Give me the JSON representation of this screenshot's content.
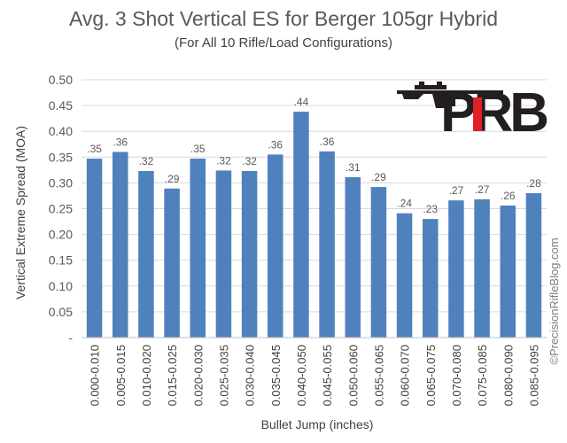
{
  "chart_data": {
    "type": "bar",
    "title": "Avg. 3 Shot Vertical ES for Berger 105gr Hybrid",
    "subtitle": "(For All 10 Rifle/Load Configurations)",
    "xlabel": "Bullet Jump (inches)",
    "ylabel": "Vertical Extreme Spread (MOA)",
    "ylim": [
      0,
      0.5
    ],
    "yticks": [
      "-",
      "0.05",
      "0.10",
      "0.15",
      "0.20",
      "0.25",
      "0.30",
      "0.35",
      "0.40",
      "0.45",
      "0.50"
    ],
    "grid": true,
    "bar_color": "#4f81bd",
    "categories": [
      "0.000-0.010",
      "0.005-0.015",
      "0.010-0.020",
      "0.015-0.025",
      "0.020-0.030",
      "0.025-0.035",
      "0.030-0.040",
      "0.035-0.045",
      "0.040-0.050",
      "0.045-0.055",
      "0.050-0.060",
      "0.055-0.065",
      "0.060-0.070",
      "0.065-0.075",
      "0.070-0.080",
      "0.075-0.085",
      "0.080-0.090",
      "0.085-0.095"
    ],
    "values": [
      0.347,
      0.36,
      0.323,
      0.289,
      0.347,
      0.324,
      0.323,
      0.355,
      0.438,
      0.361,
      0.311,
      0.292,
      0.241,
      0.23,
      0.266,
      0.268,
      0.256,
      0.28
    ],
    "data_labels": [
      ".35",
      ".36",
      ".32",
      ".29",
      ".35",
      ".32",
      ".32",
      ".36",
      ".44",
      ".36",
      ".31",
      ".29",
      ".24",
      ".23",
      ".27",
      ".27",
      ".26",
      ".28"
    ]
  },
  "logo": {
    "text": "PRB",
    "dark": "#231f20",
    "red": "#e21f26"
  },
  "credit": "©PrecisionRifleBlog.com"
}
